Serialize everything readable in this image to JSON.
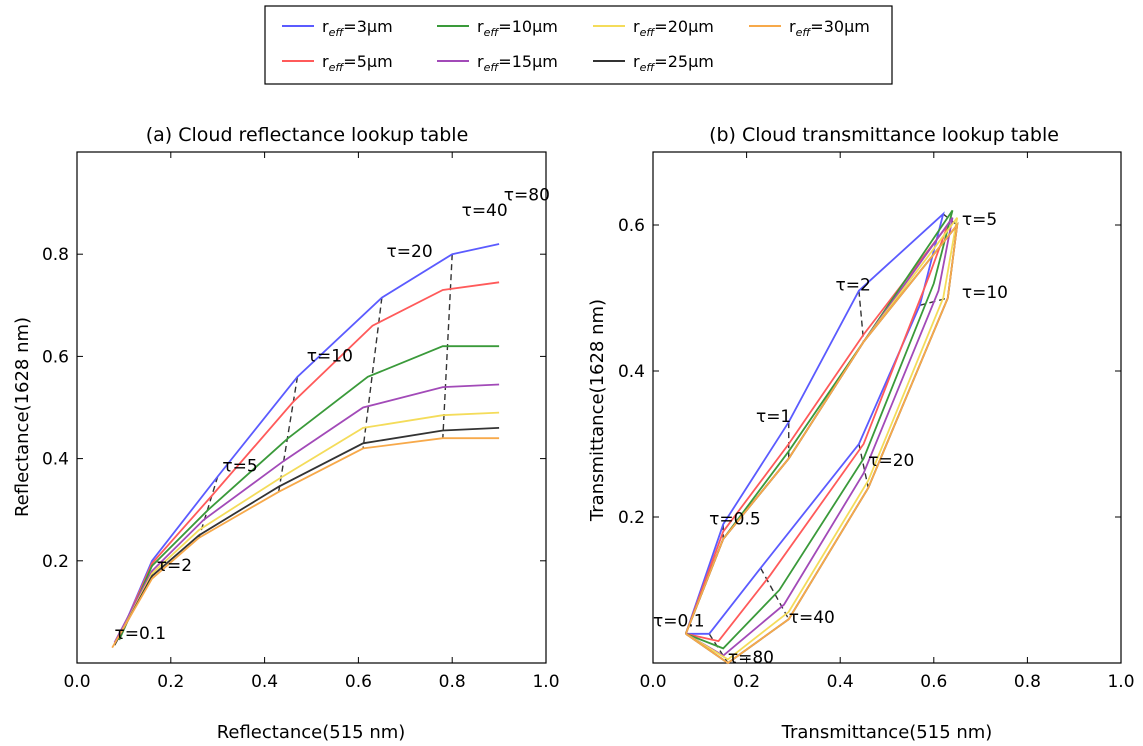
{
  "legend": {
    "entries": [
      {
        "prefix": "r",
        "sub": "eff",
        "rest": "=3μm",
        "color": "#5b5bff"
      },
      {
        "prefix": "r",
        "sub": "eff",
        "rest": "=10μm",
        "color": "#3a9a3a"
      },
      {
        "prefix": "r",
        "sub": "eff",
        "rest": "=20μm",
        "color": "#f4dc5a"
      },
      {
        "prefix": "r",
        "sub": "eff",
        "rest": "=30μm",
        "color": "#f7a94a"
      },
      {
        "prefix": "r",
        "sub": "eff",
        "rest": "=5μm",
        "color": "#ff5a5a"
      },
      {
        "prefix": "r",
        "sub": "eff",
        "rest": "=15μm",
        "color": "#a24ab8"
      },
      {
        "prefix": "r",
        "sub": "eff",
        "rest": "=25μm",
        "color": "#333333"
      }
    ]
  },
  "chart_data": [
    {
      "type": "line",
      "title": "(a) Cloud reflectance lookup table",
      "xlabel": "Reflectance(515 nm)",
      "ylabel": "Reflectance(1628 nm)",
      "xlim": [
        0.0,
        1.0
      ],
      "ylim": [
        0.0,
        1.0
      ],
      "xticks": [
        "0.0",
        "0.2",
        "0.4",
        "0.6",
        "0.8",
        "1.0"
      ],
      "yticks": [
        "0.2",
        "0.4",
        "0.6",
        "0.8"
      ],
      "annotations": [
        {
          "text": "τ=0.1",
          "x": 0.08,
          "y": 0.047
        },
        {
          "text": "τ=2",
          "x": 0.17,
          "y": 0.18
        },
        {
          "text": "τ=5",
          "x": 0.31,
          "y": 0.375
        },
        {
          "text": "τ=10",
          "x": 0.49,
          "y": 0.59
        },
        {
          "text": "τ=20",
          "x": 0.66,
          "y": 0.795
        },
        {
          "text": "τ=40",
          "x": 0.82,
          "y": 0.875
        },
        {
          "text": "τ=80",
          "x": 0.91,
          "y": 0.905
        }
      ],
      "series": [
        {
          "name": "reff=3μm",
          "color": "#5b5bff",
          "x": [
            0.09,
            0.16,
            0.3,
            0.47,
            0.65,
            0.8,
            0.9
          ],
          "y": [
            0.05,
            0.2,
            0.365,
            0.56,
            0.715,
            0.8,
            0.82
          ]
        },
        {
          "name": "reff=5μm",
          "color": "#ff5a5a",
          "x": [
            0.09,
            0.16,
            0.29,
            0.46,
            0.63,
            0.78,
            0.9
          ],
          "y": [
            0.05,
            0.195,
            0.33,
            0.51,
            0.66,
            0.73,
            0.745
          ]
        },
        {
          "name": "reff=10μm",
          "color": "#3a9a3a",
          "x": [
            0.09,
            0.16,
            0.28,
            0.45,
            0.62,
            0.78,
            0.9
          ],
          "y": [
            0.045,
            0.19,
            0.3,
            0.44,
            0.56,
            0.62,
            0.62
          ]
        },
        {
          "name": "reff=15μm",
          "color": "#a24ab8",
          "x": [
            0.08,
            0.16,
            0.27,
            0.44,
            0.61,
            0.78,
            0.9
          ],
          "y": [
            0.04,
            0.18,
            0.28,
            0.395,
            0.5,
            0.54,
            0.545
          ]
        },
        {
          "name": "reff=20μm",
          "color": "#f4dc5a",
          "x": [
            0.08,
            0.16,
            0.26,
            0.43,
            0.61,
            0.78,
            0.9
          ],
          "y": [
            0.035,
            0.175,
            0.26,
            0.36,
            0.46,
            0.485,
            0.49
          ]
        },
        {
          "name": "reff=25μm",
          "color": "#333333",
          "x": [
            0.08,
            0.16,
            0.26,
            0.43,
            0.61,
            0.78,
            0.9
          ],
          "y": [
            0.035,
            0.17,
            0.25,
            0.345,
            0.43,
            0.455,
            0.46
          ]
        },
        {
          "name": "reff=30μm",
          "color": "#f7a94a",
          "x": [
            0.075,
            0.16,
            0.26,
            0.43,
            0.61,
            0.78,
            0.9
          ],
          "y": [
            0.03,
            0.165,
            0.245,
            0.335,
            0.42,
            0.44,
            0.44
          ]
        }
      ]
    },
    {
      "type": "line",
      "title": "(b) Cloud transmittance lookup table",
      "xlabel": "Transmittance(515 nm)",
      "ylabel": "Transmittance(1628 nm)",
      "xlim": [
        0.0,
        1.0
      ],
      "ylim": [
        0.0,
        0.7
      ],
      "xticks": [
        "0.0",
        "0.2",
        "0.4",
        "0.6",
        "0.8",
        "1.0"
      ],
      "yticks": [
        "0.2",
        "0.4",
        "0.6"
      ],
      "annotations": [
        {
          "text": "τ=0.1",
          "x": 0.0,
          "y": 0.05
        },
        {
          "text": "τ=0.5",
          "x": 0.12,
          "y": 0.19
        },
        {
          "text": "τ=1",
          "x": 0.22,
          "y": 0.33
        },
        {
          "text": "τ=2",
          "x": 0.39,
          "y": 0.51
        },
        {
          "text": "τ=5",
          "x": 0.66,
          "y": 0.6
        },
        {
          "text": "τ=10",
          "x": 0.66,
          "y": 0.5
        },
        {
          "text": "τ=20",
          "x": 0.46,
          "y": 0.27
        },
        {
          "text": "τ=40",
          "x": 0.29,
          "y": 0.055
        },
        {
          "text": "τ=80",
          "x": 0.16,
          "y": 0.0
        }
      ],
      "series": [
        {
          "name": "reff=3μm",
          "color": "#5b5bff",
          "x": [
            0.07,
            0.15,
            0.29,
            0.44,
            0.62,
            0.57,
            0.44,
            0.23,
            0.12,
            0.07
          ],
          "y": [
            0.04,
            0.19,
            0.33,
            0.51,
            0.615,
            0.49,
            0.3,
            0.13,
            0.04,
            0.04
          ]
        },
        {
          "name": "reff=5μm",
          "color": "#ff5a5a",
          "x": [
            0.07,
            0.15,
            0.29,
            0.45,
            0.63,
            0.59,
            0.45,
            0.25,
            0.14,
            0.07
          ],
          "y": [
            0.04,
            0.18,
            0.3,
            0.45,
            0.6,
            0.53,
            0.3,
            0.12,
            0.03,
            0.04
          ]
        },
        {
          "name": "reff=10μm",
          "color": "#3a9a3a",
          "x": [
            0.07,
            0.15,
            0.29,
            0.45,
            0.64,
            0.6,
            0.45,
            0.27,
            0.15,
            0.07
          ],
          "y": [
            0.04,
            0.17,
            0.29,
            0.44,
            0.62,
            0.52,
            0.28,
            0.1,
            0.02,
            0.04
          ]
        },
        {
          "name": "reff=15μm",
          "color": "#a24ab8",
          "x": [
            0.07,
            0.15,
            0.29,
            0.45,
            0.64,
            0.61,
            0.45,
            0.28,
            0.15,
            0.07
          ],
          "y": [
            0.04,
            0.17,
            0.28,
            0.44,
            0.61,
            0.51,
            0.26,
            0.08,
            0.01,
            0.04
          ]
        },
        {
          "name": "reff=20μm",
          "color": "#f4dc5a",
          "x": [
            0.07,
            0.15,
            0.29,
            0.45,
            0.65,
            0.62,
            0.46,
            0.29,
            0.16,
            0.07
          ],
          "y": [
            0.04,
            0.17,
            0.28,
            0.44,
            0.61,
            0.5,
            0.25,
            0.07,
            0.005,
            0.04
          ]
        },
        {
          "name": "reff=25μm",
          "color": "#333333",
          "x": [
            0.07,
            0.15,
            0.29,
            0.45,
            0.65,
            0.63,
            0.46,
            0.29,
            0.16,
            0.07
          ],
          "y": [
            0.04,
            0.17,
            0.28,
            0.44,
            0.6,
            0.5,
            0.24,
            0.06,
            0.0,
            0.04
          ]
        },
        {
          "name": "reff=30μm",
          "color": "#f7a94a",
          "x": [
            0.07,
            0.15,
            0.29,
            0.45,
            0.65,
            0.63,
            0.46,
            0.29,
            0.16,
            0.07
          ],
          "y": [
            0.04,
            0.17,
            0.28,
            0.44,
            0.6,
            0.5,
            0.24,
            0.06,
            0.0,
            0.04
          ]
        }
      ]
    }
  ]
}
